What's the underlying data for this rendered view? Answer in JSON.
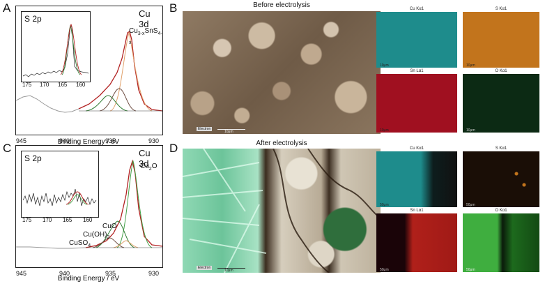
{
  "panels": {
    "A": {
      "label": "A",
      "core_label": "Cu 3d",
      "inset_label": "S 2p",
      "species": {
        "main": "Cu",
        "sub1": "3-x",
        "mid": "SnS",
        "sub2": "4-x"
      },
      "xlabel": "Binding Energy / eV",
      "xticks": [
        "945",
        "940",
        "935",
        "930"
      ],
      "inset_xticks": [
        "175",
        "170",
        "165",
        "160"
      ]
    },
    "C": {
      "label": "C",
      "core_label": "Cu 3d",
      "inset_label": "S 2p",
      "cu2o": {
        "main": "Cu",
        "sub": "2",
        "tail": "O"
      },
      "cuo": "CuO",
      "cuoh2": {
        "main": "Cu(OH)",
        "sub": "2"
      },
      "cuso4": {
        "main": "CuSO",
        "sub": "4"
      },
      "xlabel": "Binding Energy / eV",
      "xticks": [
        "945",
        "940",
        "935",
        "930"
      ],
      "inset_xticks": [
        "175",
        "170",
        "165",
        "160"
      ]
    },
    "B": {
      "label": "B",
      "title": "Before electrolysis",
      "sem_scale": "10μm",
      "sem_logo": "Electron",
      "maps": [
        {
          "name": "Cu Kα1",
          "scale": "10μm",
          "color": "#1e8c8c"
        },
        {
          "name": "S Kα1",
          "scale": "10μm",
          "color": "#c2741c"
        },
        {
          "name": "Sn Lα1",
          "scale": "10μm",
          "color": "#a01020"
        },
        {
          "name": "O Kα1",
          "scale": "10μm",
          "color": "#0c2a14"
        }
      ]
    },
    "D": {
      "label": "D",
      "title": "After electrolysis",
      "sem_scale": "10μm",
      "sem_logo": "Electron",
      "maps": [
        {
          "name": "Cu Kα1",
          "scale": "50μm",
          "color": "#1e8c8c"
        },
        {
          "name": "S Kα1",
          "scale": "50μm",
          "color": "#1a0e06"
        },
        {
          "name": "Sn Lα1",
          "scale": "50μm",
          "color": "#b0201a"
        },
        {
          "name": "O Kα1",
          "scale": "50μm",
          "color": "#1d6a1d"
        }
      ]
    }
  },
  "chart_data": [
    {
      "type": "line",
      "panel": "A",
      "xlabel": "Binding Energy / eV",
      "xlim": [
        945,
        929
      ],
      "series": [
        {
          "color": "#999999",
          "x": [
            945,
            944,
            943,
            942,
            941,
            940,
            939,
            938,
            937
          ],
          "y": [
            0.27,
            0.28,
            0.27,
            0.24,
            0.22,
            0.2,
            0.19,
            0.2,
            0.23
          ]
        },
        {
          "color": "#b22222",
          "x": [
            937,
            936,
            935,
            934,
            933.5,
            933,
            932.7,
            932.4,
            932,
            931.5,
            931,
            930.5,
            929.5
          ],
          "y": [
            0.23,
            0.3,
            0.38,
            0.5,
            0.66,
            0.82,
            0.9,
            0.88,
            0.7,
            0.45,
            0.32,
            0.27,
            0.25
          ]
        }
      ]
    },
    {
      "type": "line",
      "panel": "C",
      "xlabel": "Binding Energy / eV",
      "xlim": [
        945,
        929
      ],
      "series": [
        {
          "color": "#999999",
          "x": [
            945,
            944,
            943,
            942,
            941,
            940,
            939,
            938,
            937
          ],
          "y": [
            0.22,
            0.22,
            0.21,
            0.21,
            0.2,
            0.2,
            0.2,
            0.2,
            0.21
          ]
        },
        {
          "color": "#b22222",
          "x": [
            937,
            936,
            935,
            934,
            933.5,
            933,
            932.5,
            932.2,
            931.8,
            931.3,
            930.8,
            930.3,
            929.5
          ],
          "y": [
            0.21,
            0.23,
            0.27,
            0.33,
            0.42,
            0.6,
            0.88,
            0.96,
            0.8,
            0.45,
            0.28,
            0.22,
            0.2
          ]
        }
      ]
    }
  ]
}
